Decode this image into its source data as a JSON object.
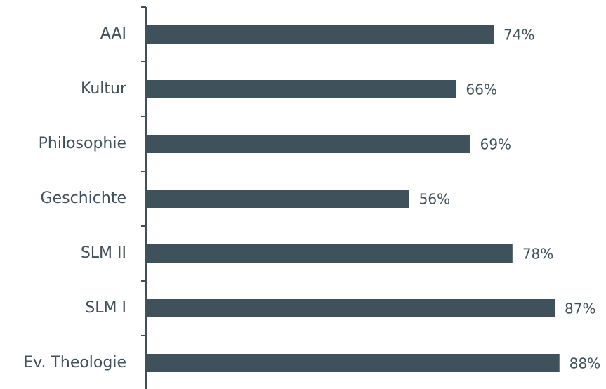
{
  "chart_data": {
    "type": "bar",
    "orientation": "horizontal",
    "categories": [
      "AAI",
      "Kultur",
      "Philosophie",
      "Geschichte",
      "SLM II",
      "SLM I",
      "Ev. Theologie"
    ],
    "values": [
      74,
      66,
      69,
      56,
      78,
      87,
      88
    ],
    "data_labels": [
      "74%",
      "66%",
      "69%",
      "56%",
      "78%",
      "87%",
      "88%"
    ],
    "unit": "%",
    "xlim": [
      0,
      100
    ],
    "grid": false,
    "legend": "none",
    "colors": {
      "bar": "#3f515b",
      "axis": "#3f515b",
      "text": "#3f515b"
    }
  }
}
